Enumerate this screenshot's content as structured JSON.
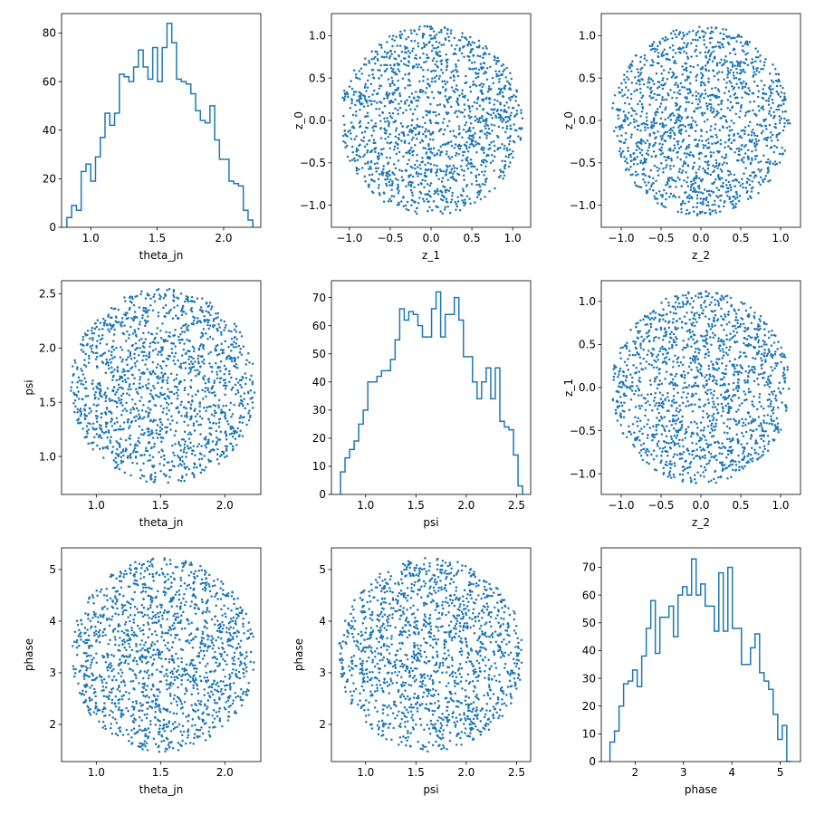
{
  "chart_data": [
    {
      "id": "hist-theta_jn",
      "type": "histogram",
      "xlabel": "theta_jn",
      "ylabel": "",
      "xlim": [
        0.78,
        2.28
      ],
      "ylim": [
        0,
        88
      ],
      "xticks": [
        1.0,
        1.5,
        2.0
      ],
      "xtick_labels": [
        "1.0",
        "1.5",
        "2.0"
      ],
      "yticks": [
        0,
        20,
        40,
        60,
        80
      ],
      "ytick_labels": [
        "0",
        "20",
        "40",
        "60",
        "80"
      ],
      "range": [
        0.82,
        2.22
      ],
      "counts": [
        4,
        9,
        7,
        23,
        26,
        19,
        29,
        37,
        47,
        42,
        47,
        63,
        62,
        60,
        66,
        73,
        66,
        61,
        74,
        60,
        74,
        84,
        76,
        61,
        60,
        59,
        55,
        48,
        44,
        43,
        50,
        36,
        28,
        28,
        19,
        18,
        17,
        7,
        3
      ]
    },
    {
      "id": "scatter-z1-z0",
      "type": "scatter",
      "xlabel": "z_1",
      "ylabel": "z_0",
      "xlim": [
        -1.22,
        1.22
      ],
      "ylim": [
        -1.26,
        1.26
      ],
      "xticks": [
        -1.0,
        -0.5,
        0.0,
        0.5,
        1.0
      ],
      "xtick_labels": [
        "−1.0",
        "−0.5",
        "0.0",
        "0.5",
        "1.0"
      ],
      "yticks": [
        -1.0,
        -0.5,
        0.0,
        0.5,
        1.0
      ],
      "ytick_labels": [
        "−1.0",
        "−0.5",
        "0.0",
        "0.5",
        "1.0"
      ],
      "distribution": {
        "shape": "disk",
        "center": [
          0.0,
          0.0
        ],
        "radius": [
          1.12,
          1.12
        ],
        "n_points": 1500
      }
    },
    {
      "id": "scatter-z2-z0",
      "type": "scatter",
      "xlabel": "z_2",
      "ylabel": "z_0",
      "xlim": [
        -1.25,
        1.25
      ],
      "ylim": [
        -1.26,
        1.26
      ],
      "xticks": [
        -1.0,
        -0.5,
        0.0,
        0.5,
        1.0
      ],
      "xtick_labels": [
        "−1.0",
        "−0.5",
        "0.0",
        "0.5",
        "1.0"
      ],
      "yticks": [
        -1.0,
        -0.5,
        0.0,
        0.5,
        1.0
      ],
      "ytick_labels": [
        "−1.0",
        "−0.5",
        "0.0",
        "0.5",
        "1.0"
      ],
      "distribution": {
        "shape": "disk",
        "center": [
          0.0,
          0.0
        ],
        "radius": [
          1.12,
          1.12
        ],
        "n_points": 1500
      }
    },
    {
      "id": "scatter-theta-psi",
      "type": "scatter",
      "xlabel": "theta_jn",
      "ylabel": "psi",
      "xlim": [
        0.73,
        2.28
      ],
      "ylim": [
        0.65,
        2.62
      ],
      "xticks": [
        1.0,
        1.5,
        2.0
      ],
      "xtick_labels": [
        "1.0",
        "1.5",
        "2.0"
      ],
      "yticks": [
        1.0,
        1.5,
        2.0,
        2.5
      ],
      "ytick_labels": [
        "1.0",
        "1.5",
        "2.0",
        "2.5"
      ],
      "distribution": {
        "shape": "disk",
        "center": [
          1.52,
          1.65
        ],
        "radius": [
          0.72,
          0.9
        ],
        "n_points": 1500
      }
    },
    {
      "id": "hist-psi",
      "type": "histogram",
      "xlabel": "psi",
      "ylabel": "",
      "xlim": [
        0.66,
        2.64
      ],
      "ylim": [
        0,
        76
      ],
      "xticks": [
        1.0,
        1.5,
        2.0,
        2.5
      ],
      "xtick_labels": [
        "1.0",
        "1.5",
        "2.0",
        "2.5"
      ],
      "yticks": [
        0,
        10,
        20,
        30,
        40,
        50,
        60,
        70
      ],
      "ytick_labels": [
        "0",
        "10",
        "20",
        "30",
        "40",
        "50",
        "60",
        "70"
      ],
      "range": [
        0.75,
        2.56
      ],
      "counts": [
        8,
        13,
        16,
        19,
        25,
        30,
        40,
        40,
        42,
        44,
        44,
        48,
        55,
        66,
        62,
        65,
        64,
        60,
        56,
        56,
        66,
        72,
        56,
        64,
        64,
        70,
        62,
        49,
        49,
        40,
        34,
        40,
        45,
        34,
        45,
        26,
        24,
        23,
        14,
        3
      ]
    },
    {
      "id": "scatter-z2-z1",
      "type": "scatter",
      "xlabel": "z_2",
      "ylabel": "z_1",
      "xlim": [
        -1.25,
        1.25
      ],
      "ylim": [
        -1.24,
        1.24
      ],
      "xticks": [
        -1.0,
        -0.5,
        0.0,
        0.5,
        1.0
      ],
      "xtick_labels": [
        "−1.0",
        "−0.5",
        "0.0",
        "0.5",
        "1.0"
      ],
      "yticks": [
        -1.0,
        -0.5,
        0.0,
        0.5,
        1.0
      ],
      "ytick_labels": [
        "−1.0",
        "−0.5",
        "0.0",
        "0.5",
        "1.0"
      ],
      "distribution": {
        "shape": "disk",
        "center": [
          0.0,
          0.0
        ],
        "radius": [
          1.12,
          1.12
        ],
        "n_points": 1500
      }
    },
    {
      "id": "scatter-theta-phase",
      "type": "scatter",
      "xlabel": "theta_jn",
      "ylabel": "phase",
      "xlim": [
        0.73,
        2.28
      ],
      "ylim": [
        1.28,
        5.42
      ],
      "xticks": [
        1.0,
        1.5,
        2.0
      ],
      "xtick_labels": [
        "1.0",
        "1.5",
        "2.0"
      ],
      "yticks": [
        2,
        3,
        4,
        5
      ],
      "ytick_labels": [
        "2",
        "3",
        "4",
        "5"
      ],
      "distribution": {
        "shape": "disk",
        "center": [
          1.52,
          3.35
        ],
        "radius": [
          0.72,
          1.88
        ],
        "n_points": 1500
      }
    },
    {
      "id": "scatter-psi-phase",
      "type": "scatter",
      "xlabel": "psi",
      "ylabel": "phase",
      "xlim": [
        0.66,
        2.64
      ],
      "ylim": [
        1.28,
        5.42
      ],
      "xticks": [
        1.0,
        1.5,
        2.0,
        2.5
      ],
      "xtick_labels": [
        "1.0",
        "1.5",
        "2.0",
        "2.5"
      ],
      "yticks": [
        2,
        3,
        4,
        5
      ],
      "ytick_labels": [
        "2",
        "3",
        "4",
        "5"
      ],
      "distribution": {
        "shape": "disk",
        "center": [
          1.65,
          3.35
        ],
        "radius": [
          0.92,
          1.88
        ],
        "n_points": 1500
      }
    },
    {
      "id": "hist-phase",
      "type": "histogram",
      "xlabel": "phase",
      "ylabel": "",
      "xlim": [
        1.3,
        5.42
      ],
      "ylim": [
        0,
        77
      ],
      "xticks": [
        2,
        3,
        4,
        5
      ],
      "xtick_labels": [
        "2",
        "3",
        "4",
        "5"
      ],
      "yticks": [
        0,
        10,
        20,
        30,
        40,
        50,
        60,
        70
      ],
      "ytick_labels": [
        "0",
        "10",
        "20",
        "30",
        "40",
        "50",
        "60",
        "70"
      ],
      "range": [
        1.48,
        5.23
      ],
      "counts": [
        7,
        11,
        20,
        28,
        29,
        33,
        27,
        38,
        48,
        58,
        39,
        52,
        52,
        56,
        45,
        60,
        63,
        60,
        73,
        60,
        64,
        56,
        56,
        47,
        68,
        47,
        70,
        48,
        48,
        35,
        35,
        41,
        46,
        32,
        29,
        26,
        17,
        8,
        13,
        0
      ]
    }
  ]
}
